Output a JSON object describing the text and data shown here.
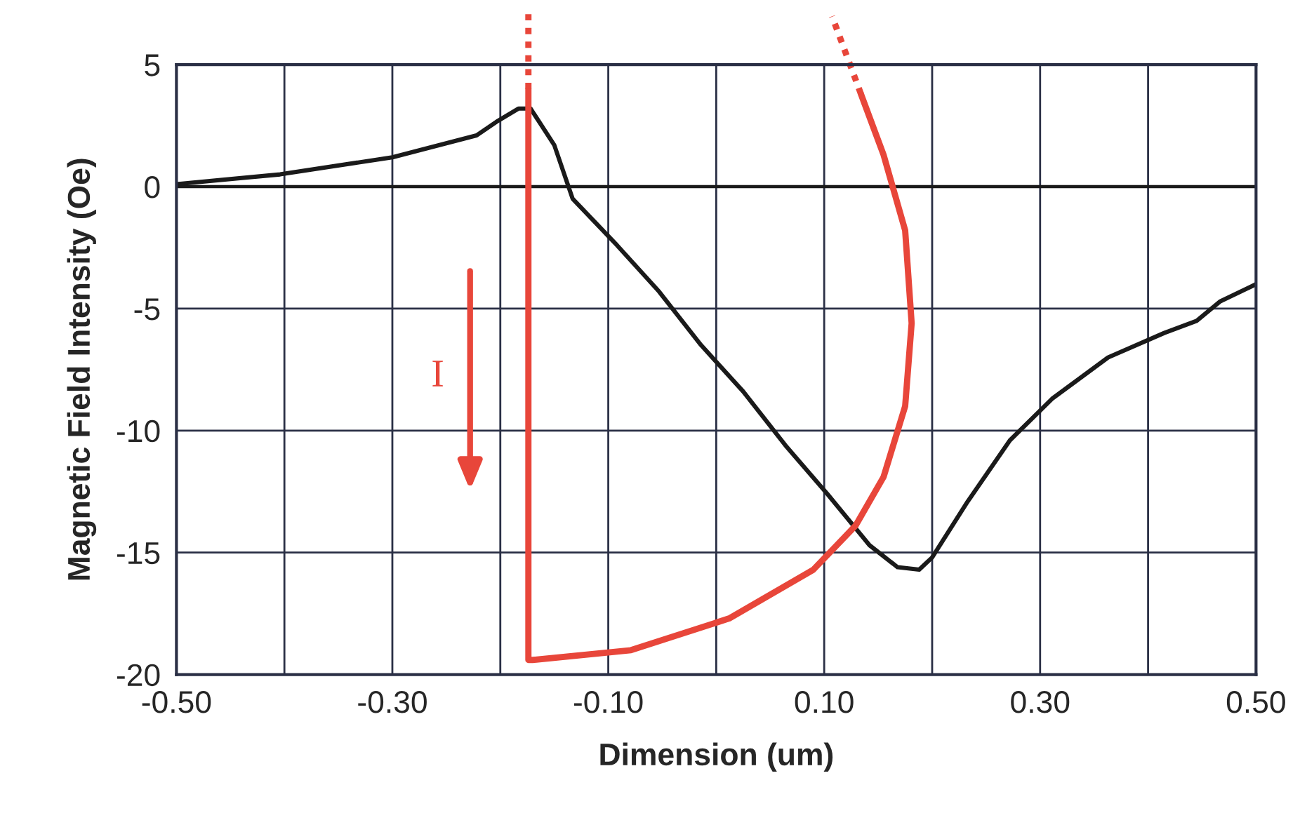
{
  "chart_data": {
    "type": "line",
    "xlabel": "Dimension (um)",
    "ylabel": "Magnetic Field Intensity (Oe)",
    "series": [
      {
        "color": "#1a1a1a",
        "x": [
          -0.5,
          -0.404,
          -0.3,
          -0.222,
          -0.202,
          -0.183,
          -0.172,
          -0.15,
          -0.133,
          -0.092,
          -0.053,
          -0.014,
          0.025,
          0.064,
          0.103,
          0.142,
          0.168,
          0.188,
          0.2,
          0.233,
          0.272,
          0.311,
          0.363,
          0.415,
          0.445,
          0.467,
          0.5
        ],
        "values": [
          0.1,
          0.5,
          1.2,
          2.1,
          2.7,
          3.2,
          3.2,
          1.7,
          -0.5,
          -2.4,
          -4.3,
          -6.5,
          -8.4,
          -10.6,
          -12.6,
          -14.7,
          -15.6,
          -15.7,
          -15.2,
          -12.9,
          -10.4,
          -8.7,
          -7.0,
          -6.0,
          -5.5,
          -4.7,
          -4.0
        ]
      },
      {
        "color": "#e8463a",
        "x": [
          -0.174,
          -0.174,
          -0.17,
          -0.079,
          0.012,
          0.09,
          0.129,
          0.155,
          0.175,
          0.181,
          0.175,
          0.155,
          0.134
        ],
        "values": [
          4.0,
          -19.4,
          -19.4,
          -19.0,
          -17.7,
          -15.7,
          -13.9,
          -11.9,
          -9.0,
          -5.6,
          -1.8,
          1.3,
          3.8
        ]
      }
    ],
    "annotations": [
      "I"
    ],
    "xlim": [
      -0.5,
      0.5
    ],
    "xticks": [
      {
        "value": -0.5,
        "label": "-0.50"
      },
      {
        "value": -0.4,
        "label": null
      },
      {
        "value": -0.3,
        "label": "-0.30"
      },
      {
        "value": -0.2,
        "label": null
      },
      {
        "value": -0.1,
        "label": "-0.10"
      },
      {
        "value": 0.0,
        "label": null
      },
      {
        "value": 0.1,
        "label": "0.10"
      },
      {
        "value": 0.2,
        "label": null
      },
      {
        "value": 0.3,
        "label": "0.30"
      },
      {
        "value": 0.4,
        "label": null
      },
      {
        "value": 0.5,
        "label": "0.50"
      }
    ],
    "ylim": [
      -20,
      5
    ],
    "yticks": [
      -20,
      -15,
      -10,
      -5,
      0,
      5
    ],
    "grid": true,
    "legend": false,
    "marker": "none",
    "line_style": "solid"
  }
}
